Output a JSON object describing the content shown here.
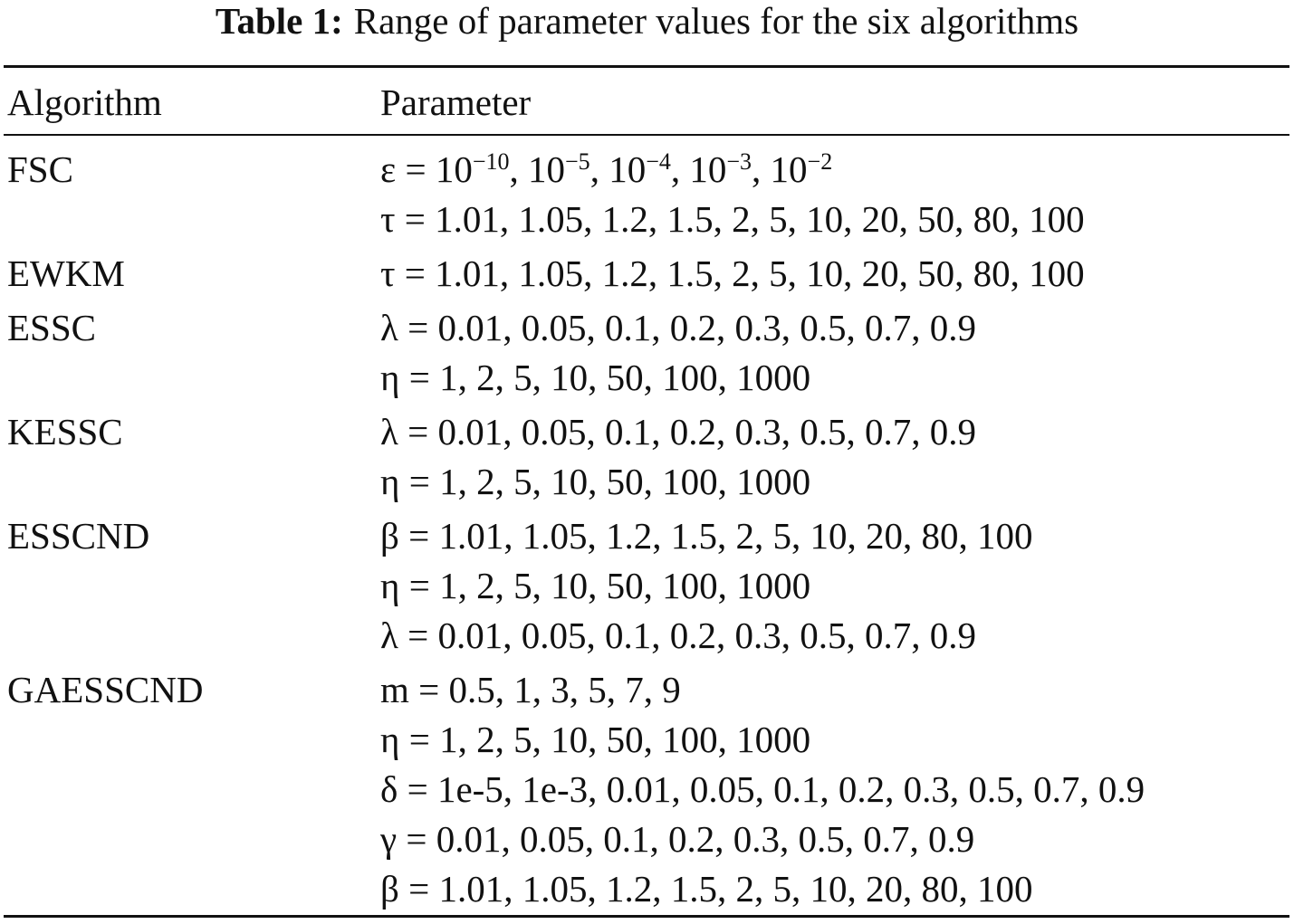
{
  "title": {
    "label": "Table 1:",
    "text": "Range of parameter values for the six algorithms"
  },
  "table": {
    "header": [
      "Algorithm",
      "Parameter"
    ],
    "rows": [
      {
        "algorithm": "FSC",
        "parameters": [
          [
            {
              "text": "ε = 10"
            },
            {
              "sup": "−10"
            },
            {
              "text": ", 10"
            },
            {
              "sup": "−5"
            },
            {
              "text": ", 10"
            },
            {
              "sup": "−4"
            },
            {
              "text": ", 10"
            },
            {
              "sup": "−3"
            },
            {
              "text": ", 10"
            },
            {
              "sup": "−2"
            }
          ],
          [
            {
              "text": "τ = 1.01, 1.05, 1.2, 1.5, 2, 5, 10, 20, 50, 80, 100"
            }
          ]
        ]
      },
      {
        "algorithm": "EWKM",
        "parameters": [
          [
            {
              "text": "τ = 1.01, 1.05, 1.2, 1.5, 2, 5, 10, 20, 50, 80, 100"
            }
          ]
        ]
      },
      {
        "algorithm": "ESSC",
        "parameters": [
          [
            {
              "text": "λ = 0.01, 0.05, 0.1, 0.2, 0.3, 0.5, 0.7, 0.9"
            }
          ],
          [
            {
              "text": "η = 1, 2, 5, 10, 50, 100, 1000"
            }
          ]
        ]
      },
      {
        "algorithm": "KESSC",
        "parameters": [
          [
            {
              "text": "λ = 0.01, 0.05, 0.1, 0.2, 0.3, 0.5, 0.7, 0.9"
            }
          ],
          [
            {
              "text": "η = 1, 2, 5, 10, 50, 100, 1000"
            }
          ]
        ]
      },
      {
        "algorithm": "ESSCND",
        "parameters": [
          [
            {
              "text": "β = 1.01, 1.05, 1.2, 1.5, 2, 5, 10, 20, 80, 100"
            }
          ],
          [
            {
              "text": "η = 1, 2, 5, 10, 50, 100, 1000"
            }
          ],
          [
            {
              "text": "λ = 0.01, 0.05, 0.1, 0.2, 0.3, 0.5, 0.7, 0.9"
            }
          ]
        ]
      },
      {
        "algorithm": "GAESSCND",
        "parameters": [
          [
            {
              "text": "m = 0.5, 1, 3, 5, 7, 9"
            }
          ],
          [
            {
              "text": "η = 1, 2, 5, 10, 50, 100, 1000"
            }
          ],
          [
            {
              "text": "δ = 1e-5, 1e-3, 0.01, 0.05, 0.1, 0.2, 0.3, 0.5, 0.7, 0.9"
            }
          ],
          [
            {
              "text": "γ = 0.01, 0.05, 0.1, 0.2, 0.3, 0.5, 0.7, 0.9"
            }
          ],
          [
            {
              "text": "β = 1.01, 1.05, 1.2, 1.5, 2, 5, 10, 20, 80, 100"
            }
          ]
        ]
      }
    ]
  }
}
